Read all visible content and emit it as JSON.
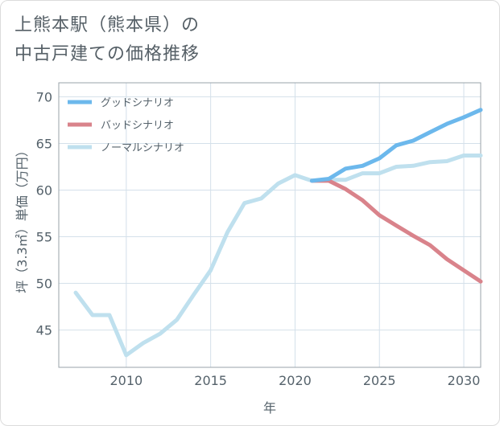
{
  "title_lines": [
    "上熊本駅（熊本県）の",
    "中古戸建ての価格推移"
  ],
  "chart_data": {
    "type": "line",
    "title": "上熊本駅（熊本県）の中古戸建ての価格推移",
    "xlabel": "年",
    "ylabel": "坪（3.3㎡）単価（万円）",
    "xlim": [
      2006,
      2031
    ],
    "ylim": [
      41,
      71.5
    ],
    "xticks": [
      2010,
      2015,
      2020,
      2025,
      2030
    ],
    "yticks": [
      45,
      50,
      55,
      60,
      65,
      70
    ],
    "grid": true,
    "legend_position": "top-left",
    "series": [
      {
        "name": "グッドシナリオ",
        "color": "#6cb8ec",
        "x": [
          2021,
          2022,
          2023,
          2024,
          2025,
          2026,
          2027,
          2028,
          2029,
          2030,
          2031
        ],
        "y": [
          61.0,
          61.2,
          62.3,
          62.6,
          63.4,
          64.8,
          65.3,
          66.2,
          67.1,
          67.8,
          68.6
        ]
      },
      {
        "name": "バッドシナリオ",
        "color": "#d9838b",
        "x": [
          2021,
          2022,
          2023,
          2024,
          2025,
          2026,
          2027,
          2028,
          2029,
          2030,
          2031
        ],
        "y": [
          61.0,
          61.0,
          60.1,
          58.9,
          57.3,
          56.2,
          55.1,
          54.1,
          52.6,
          51.4,
          50.2
        ]
      },
      {
        "name": "ノーマルシナリオ",
        "color": "#bfe0ee",
        "x": [
          2007,
          2008,
          2009,
          2010,
          2011,
          2012,
          2013,
          2014,
          2015,
          2016,
          2017,
          2018,
          2019,
          2020,
          2021,
          2022,
          2023,
          2024,
          2025,
          2026,
          2027,
          2028,
          2029,
          2030,
          2031
        ],
        "y": [
          49.0,
          46.6,
          46.6,
          42.3,
          43.6,
          44.6,
          46.1,
          48.8,
          51.4,
          55.5,
          58.6,
          59.1,
          60.7,
          61.6,
          61.0,
          61.1,
          61.1,
          61.8,
          61.8,
          62.5,
          62.6,
          63.0,
          63.1,
          63.7,
          63.7
        ]
      }
    ]
  }
}
